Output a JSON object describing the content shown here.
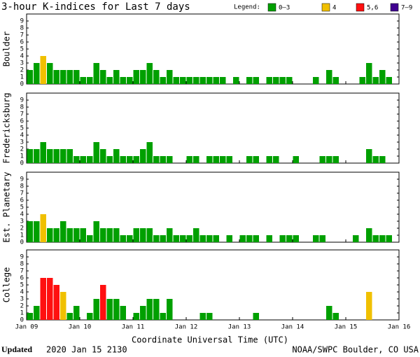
{
  "title": "3-hour K-indices for Last 7 days",
  "legend_title": "Legend:",
  "legend": [
    {
      "label": "0–3",
      "color": "#00a000",
      "range": [
        0,
        3
      ]
    },
    {
      "label": "4",
      "color": "#f0c000",
      "range": [
        4,
        4
      ]
    },
    {
      "label": "5,6",
      "color": "#ff1010",
      "range": [
        5,
        6
      ]
    },
    {
      "label": "7–9",
      "color": "#400090",
      "range": [
        7,
        9
      ]
    }
  ],
  "chart_data": [
    {
      "type": "bar",
      "ylabel": "Boulder",
      "ylim": [
        0,
        10
      ],
      "yticks": [
        0,
        1,
        2,
        3,
        4,
        5,
        6,
        7,
        8,
        9
      ],
      "values": [
        2,
        3,
        4,
        3,
        2,
        2,
        2,
        2,
        1,
        1,
        3,
        2,
        1,
        2,
        1,
        1,
        2,
        2,
        3,
        2,
        1,
        2,
        1,
        1,
        1,
        1,
        1,
        1,
        1,
        1,
        0,
        1,
        0,
        1,
        1,
        0,
        1,
        1,
        1,
        1,
        0,
        0,
        0,
        1,
        0,
        2,
        1,
        0,
        0,
        0,
        1,
        3,
        1,
        2,
        1,
        0
      ]
    },
    {
      "type": "bar",
      "ylabel": "Fredericksburg",
      "ylim": [
        0,
        10
      ],
      "yticks": [
        0,
        1,
        2,
        3,
        4,
        5,
        6,
        7,
        8,
        9
      ],
      "values": [
        2,
        2,
        3,
        2,
        2,
        2,
        2,
        1,
        1,
        1,
        3,
        2,
        1,
        2,
        1,
        1,
        1,
        2,
        3,
        1,
        1,
        1,
        0,
        0,
        1,
        1,
        0,
        1,
        1,
        1,
        1,
        0,
        0,
        1,
        1,
        0,
        1,
        1,
        0,
        0,
        1,
        0,
        0,
        0,
        1,
        1,
        1,
        0,
        0,
        0,
        0,
        2,
        1,
        1,
        0,
        0
      ]
    },
    {
      "type": "bar",
      "ylabel": "Est. Planetary",
      "ylim": [
        0,
        10
      ],
      "yticks": [
        0,
        1,
        2,
        3,
        4,
        5,
        6,
        7,
        8,
        9
      ],
      "values": [
        3,
        3,
        4,
        2,
        2,
        3,
        2,
        2,
        2,
        1,
        3,
        2,
        2,
        2,
        1,
        1,
        2,
        2,
        2,
        1,
        1,
        2,
        1,
        1,
        1,
        2,
        1,
        1,
        1,
        0,
        1,
        0,
        1,
        1,
        1,
        0,
        1,
        0,
        1,
        1,
        1,
        0,
        0,
        1,
        1,
        0,
        0,
        0,
        0,
        1,
        0,
        2,
        1,
        1,
        1,
        0
      ]
    },
    {
      "type": "bar",
      "ylabel": "College",
      "ylim": [
        0,
        10
      ],
      "yticks": [
        0,
        1,
        2,
        3,
        4,
        5,
        6,
        7,
        8,
        9
      ],
      "values": [
        1,
        2,
        6,
        6,
        5,
        4,
        1,
        2,
        0,
        1,
        3,
        5,
        3,
        3,
        2,
        0,
        1,
        2,
        3,
        3,
        1,
        3,
        0,
        0,
        0,
        0,
        1,
        1,
        0,
        0,
        0,
        0,
        0,
        0,
        1,
        0,
        0,
        0,
        0,
        0,
        0,
        0,
        0,
        0,
        0,
        2,
        1,
        0,
        0,
        0,
        0,
        4,
        0,
        0,
        0,
        0
      ]
    }
  ],
  "x_axis": {
    "label": "Coordinate Universal Time (UTC)",
    "ticks": [
      "Jan 09",
      "Jan 10",
      "Jan 11",
      "Jan 12",
      "Jan 13",
      "Jan 14",
      "Jan 15",
      "Jan 16"
    ]
  },
  "footer": {
    "updated_label": "Updated",
    "updated": "2020 Jan 15 2130",
    "source": "NOAA/SWPC Boulder, CO USA"
  }
}
